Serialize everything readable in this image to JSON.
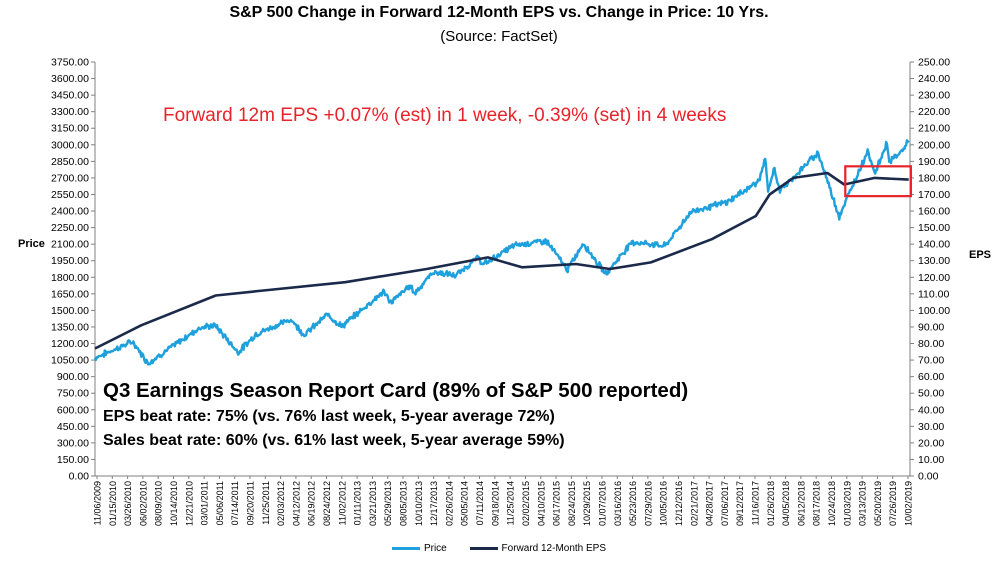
{
  "colors": {
    "price": "#1ea0dc",
    "eps": "#1b2a4a",
    "annotation": "#e8232a",
    "grid": "#d9d9d9"
  },
  "chart_data": {
    "type": "line",
    "title": "S&P 500 Change in Forward 12-Month EPS vs. Change in Price: 10 Yrs.",
    "subtitle": "(Source: FactSet)",
    "ylabel_left": "Price",
    "ylabel_right": "EPS",
    "ylim_left": [
      0,
      3750
    ],
    "ylim_right": [
      0,
      250
    ],
    "left_ticks": [
      "3750.00",
      "3600.00",
      "3450.00",
      "3300.00",
      "3150.00",
      "3000.00",
      "2850.00",
      "2700.00",
      "2550.00",
      "2400.00",
      "2250.00",
      "2100.00",
      "1950.00",
      "1800.00",
      "1650.00",
      "1500.00",
      "1350.00",
      "1200.00",
      "1050.00",
      "900.00",
      "750.00",
      "600.00",
      "450.00",
      "300.00",
      "150.00",
      "0.00"
    ],
    "right_ticks": [
      "250.00",
      "240.00",
      "230.00",
      "220.00",
      "210.00",
      "200.00",
      "190.00",
      "180.00",
      "170.00",
      "160.00",
      "150.00",
      "140.00",
      "130.00",
      "120.00",
      "110.00",
      "100.00",
      "90.00",
      "80.00",
      "70.00",
      "60.00",
      "50.00",
      "40.00",
      "30.00",
      "20.00",
      "10.00",
      "0.00"
    ],
    "x_tick_labels": [
      "11/06/2009",
      "01/15/2010",
      "03/26/2010",
      "06/02/2010",
      "08/09/2010",
      "10/14/2010",
      "12/21/2010",
      "03/01/2011",
      "05/06/2011",
      "07/14/2011",
      "09/20/2011",
      "11/25/2011",
      "02/03/2012",
      "04/12/2012",
      "06/19/2012",
      "08/24/2012",
      "11/02/2012",
      "01/11/2013",
      "03/21/2013",
      "05/29/2013",
      "08/05/2013",
      "10/10/2013",
      "12/17/2013",
      "02/26/2014",
      "05/05/2014",
      "07/11/2014",
      "09/18/2014",
      "11/25/2014",
      "02/02/2015",
      "04/10/2015",
      "06/17/2015",
      "08/24/2015",
      "10/29/2015",
      "01/07/2016",
      "03/16/2016",
      "05/23/2016",
      "07/29/2016",
      "10/05/2016",
      "12/12/2016",
      "02/21/2017",
      "04/28/2017",
      "07/06/2017",
      "09/12/2017",
      "11/16/2017",
      "01/26/2018",
      "04/05/2018",
      "06/12/2018",
      "08/17/2018",
      "10/24/2018",
      "01/03/2019",
      "03/13/2019",
      "05/20/2019",
      "07/26/2019",
      "10/02/2019"
    ],
    "series": [
      {
        "name": "Price",
        "axis": "left",
        "x": [
          "2009-11-06",
          "2010-04-23",
          "2010-07-02",
          "2011-02-18",
          "2011-04-29",
          "2011-08-10",
          "2011-10-28",
          "2012-04-02",
          "2012-06-01",
          "2012-09-14",
          "2012-11-15",
          "2013-05-21",
          "2013-06-24",
          "2013-09-18",
          "2013-10-08",
          "2013-12-31",
          "2014-04-11",
          "2014-07-24",
          "2014-08-07",
          "2014-12-29",
          "2015-05-21",
          "2015-08-25",
          "2015-11-03",
          "2016-02-11",
          "2016-06-08",
          "2016-11-04",
          "2017-03-01",
          "2017-08-08",
          "2017-12-29",
          "2018-01-26",
          "2018-02-08",
          "2018-03-09",
          "2018-04-02",
          "2018-09-20",
          "2018-12-24",
          "2019-04-30",
          "2019-06-03",
          "2019-07-26",
          "2019-08-05",
          "2019-10-04",
          "2019-10-31"
        ],
        "values": [
          1070,
          1217,
          1022,
          1343,
          1364,
          1120,
          1285,
          1419,
          1278,
          1465,
          1353,
          1669,
          1573,
          1725,
          1656,
          1848,
          1815,
          1988,
          1909,
          2090,
          2131,
          1868,
          2109,
          1829,
          2120,
          2085,
          2396,
          2480,
          2673,
          2873,
          2581,
          2786,
          2581,
          2930,
          2351,
          2945,
          2744,
          3025,
          2844,
          2952,
          3037
        ]
      },
      {
        "name": "Forward 12-Month EPS",
        "axis": "right",
        "x": [
          "2009-11-06",
          "2010-06-01",
          "2011-05-01",
          "2011-12-01",
          "2012-12-01",
          "2013-12-01",
          "2014-09-01",
          "2015-02-01",
          "2015-10-01",
          "2016-03-01",
          "2016-09-01",
          "2017-06-01",
          "2017-12-15",
          "2018-02-15",
          "2018-06-01",
          "2018-11-01",
          "2019-01-15",
          "2019-06-01",
          "2019-10-31"
        ],
        "values": [
          77,
          91,
          109,
          112,
          117,
          125,
          132,
          126,
          128,
          125,
          129,
          143,
          157,
          170,
          180,
          183,
          176,
          180,
          179
        ]
      }
    ],
    "legend": "bottom-center",
    "grid": false
  },
  "annotation": "Forward 12m EPS +0.07% (est) in 1 week, -0.39% (set) in 4 weeks",
  "report_card": {
    "title": "Q3 Earnings Season Report Card (89% of S&P 500 reported)",
    "eps_line": "EPS beat rate: 75% (vs. 76% last week, 5-year average 72%)",
    "sales_line": "Sales beat rate: 60% (vs. 61% last week, 5-year average 59%)"
  }
}
